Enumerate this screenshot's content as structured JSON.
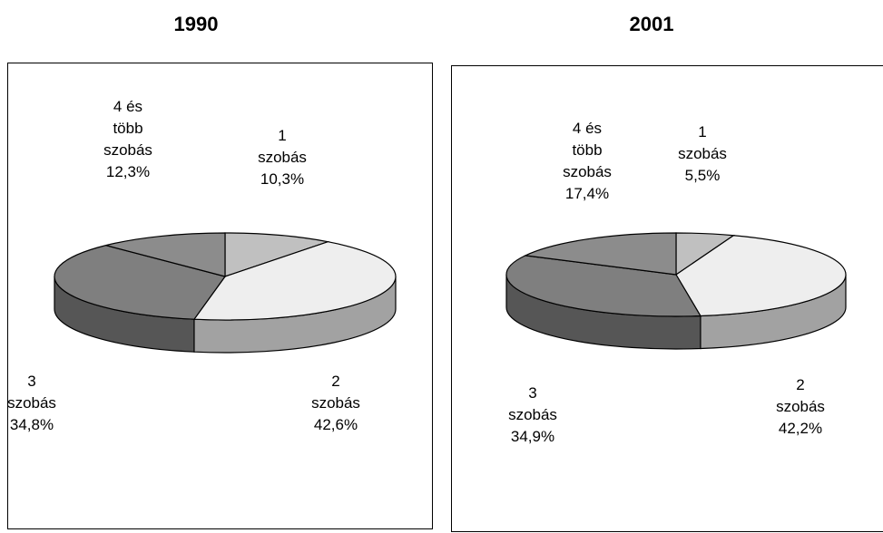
{
  "chart_data": [
    {
      "type": "pie",
      "title": "1990",
      "slices": [
        {
          "label_lines": [
            "1",
            "szobás"
          ],
          "value_text": "10,3%",
          "value": 10.3,
          "color": "#c0c0c0"
        },
        {
          "label_lines": [
            "2",
            "szobás"
          ],
          "value_text": "42,6%",
          "value": 42.6,
          "color": "#eeeeee"
        },
        {
          "label_lines": [
            "3",
            "szobás"
          ],
          "value_text": "34,8%",
          "value": 34.8,
          "color": "#7f7f7f"
        },
        {
          "label_lines": [
            "4 és",
            "több",
            "szobás"
          ],
          "value_text": "12,3%",
          "value": 12.3,
          "color": "#8c8c8c"
        }
      ]
    },
    {
      "type": "pie",
      "title": "2001",
      "slices": [
        {
          "label_lines": [
            "1",
            "szobás"
          ],
          "value_text": "5,5%",
          "value": 5.5,
          "color": "#c0c0c0"
        },
        {
          "label_lines": [
            "2",
            "szobás"
          ],
          "value_text": "42,2%",
          "value": 42.2,
          "color": "#eeeeee"
        },
        {
          "label_lines": [
            "3",
            "szobás"
          ],
          "value_text": "34,9%",
          "value": 34.9,
          "color": "#7f7f7f"
        },
        {
          "label_lines": [
            "4 és",
            "több",
            "szobás"
          ],
          "value_text": "17,4%",
          "value": 17.4,
          "color": "#8c8c8c"
        }
      ]
    }
  ]
}
